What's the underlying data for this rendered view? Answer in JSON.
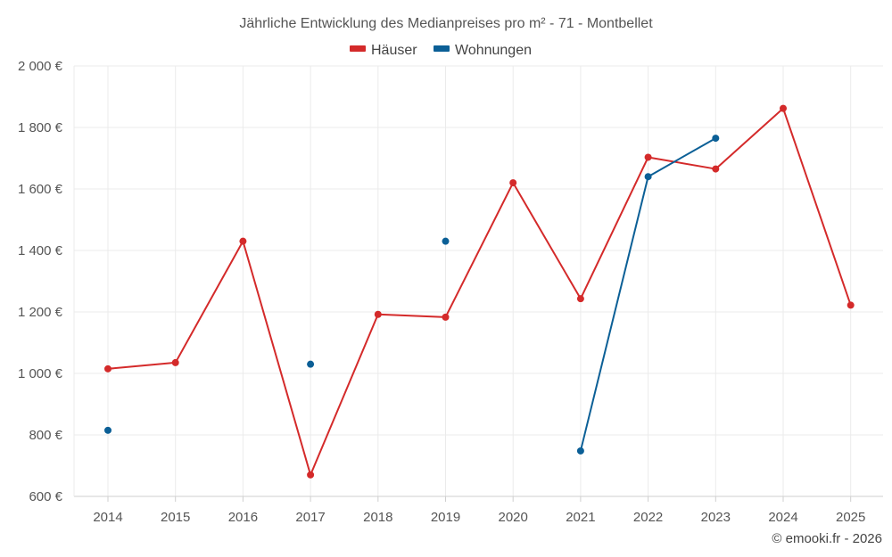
{
  "chart_data": {
    "type": "line",
    "title": "Jährliche Entwicklung des Medianpreises pro m² - 71 - Montbellet",
    "xlabel": "",
    "ylabel": "",
    "ylim": [
      600,
      2000
    ],
    "yticks": [
      600,
      800,
      1000,
      1200,
      1400,
      1600,
      1800,
      2000
    ],
    "ytick_labels": [
      "600 €",
      "800 €",
      "1 000 €",
      "1 200 €",
      "1 400 €",
      "1 600 €",
      "1 800 €",
      "2 000 €"
    ],
    "categories": [
      "2014",
      "2015",
      "2016",
      "2017",
      "2018",
      "2019",
      "2020",
      "2021",
      "2022",
      "2023",
      "2024",
      "2025"
    ],
    "grid": true,
    "legend_position": "top-center",
    "series": [
      {
        "name": "Häuser",
        "color": "#d42a2a",
        "values": [
          1015,
          1035,
          1430,
          670,
          1192,
          1183,
          1620,
          1243,
          1703,
          1665,
          1862,
          1222
        ]
      },
      {
        "name": "Wohnungen",
        "color": "#0b5f96",
        "values": [
          815,
          null,
          null,
          1030,
          null,
          1430,
          null,
          748,
          1640,
          1765,
          null,
          null
        ]
      }
    ]
  },
  "footer": {
    "copyright": "© emooki.fr - 2026"
  }
}
